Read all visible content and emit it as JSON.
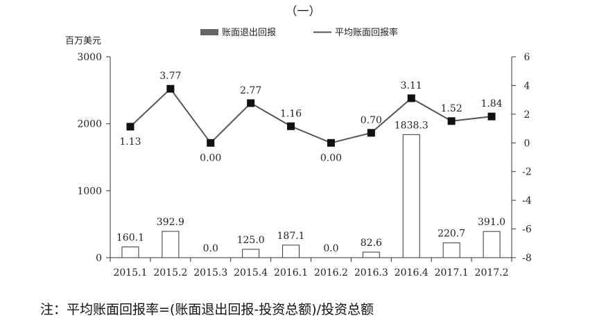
{
  "page": {
    "heading": "（一）",
    "note": "注：平均账面回报率=(账面退出回报-投资总额)/投资总额"
  },
  "chart_data": {
    "type": "bar+line",
    "categories": [
      "2015.1",
      "2015.2",
      "2015.3",
      "2015.4",
      "2016.1",
      "2016.2",
      "2016.3",
      "2016.4",
      "2017.1",
      "2017.2"
    ],
    "series": [
      {
        "name": "账面退出回报",
        "type": "bar",
        "axis": "left",
        "values": [
          160.1,
          392.9,
          0.0,
          125.0,
          187.1,
          0.0,
          82.6,
          1838.3,
          220.7,
          391.0
        ],
        "labels": [
          "160.1",
          "392.9",
          "0.0",
          "125.0",
          "187.1",
          "0.0",
          "82.6",
          "1838.3",
          "220.7",
          "391.0"
        ]
      },
      {
        "name": "平均账面回报率",
        "type": "line",
        "axis": "right",
        "values": [
          1.13,
          3.77,
          0.0,
          2.77,
          1.16,
          0.0,
          0.7,
          3.11,
          1.52,
          1.84
        ],
        "labels": [
          "1.13",
          "3.77",
          "0.00",
          "2.77",
          "1.16",
          "0.00",
          "0.70",
          "3.11",
          "1.52",
          "1.84"
        ]
      }
    ],
    "left_axis": {
      "unit_label": "百万美元",
      "ylim": [
        0,
        3000
      ],
      "ticks": [
        "0",
        "1000",
        "2000",
        "3000"
      ],
      "tick_values": [
        0,
        1000,
        2000,
        3000
      ]
    },
    "right_axis": {
      "ylim": [
        -8,
        6
      ],
      "ticks": [
        "-8",
        "-6",
        "-4",
        "-2",
        "0",
        "2",
        "4",
        "6"
      ],
      "tick_values": [
        -8,
        -6,
        -4,
        -2,
        0,
        2,
        4,
        6
      ]
    },
    "grid": false,
    "legend_position": "top-center",
    "colors": {
      "bar_fill": "#ffffff",
      "bar_stroke": "#333333",
      "line": "#555555",
      "marker": "#111111",
      "legend_bar": "#666666"
    }
  }
}
